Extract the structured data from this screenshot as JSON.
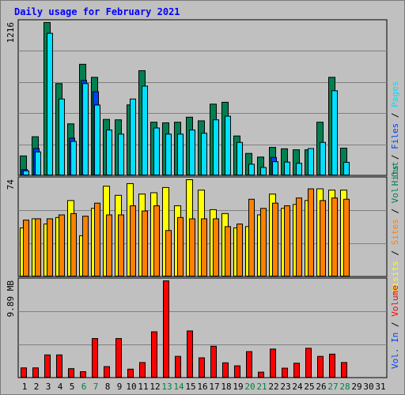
{
  "title": "Daily usage for February 2021",
  "colors": {
    "hits": "#008050",
    "files": "#0040ff",
    "pages": "#00e0ff",
    "visits": "#ffff00",
    "sites": "#ff8000",
    "volume": "#ff0000",
    "grid": "#808080",
    "plot_bg": "#c0c0c0",
    "weekday_label": "#000000",
    "weekend_label": "#008040"
  },
  "right_labels": {
    "top": [
      {
        "text": "Hits",
        "color": "#008050"
      },
      {
        "text": "Files",
        "color": "#0040ff"
      },
      {
        "text": "Pages",
        "color": "#00e0ff"
      }
    ],
    "middle": [
      {
        "text": "Visits",
        "color": "#ffff00"
      },
      {
        "text": "Sites",
        "color": "#ff8000"
      },
      {
        "text": "Vol. Out",
        "color": "#008050"
      }
    ],
    "bottom": [
      {
        "text": "Vol. In",
        "color": "#0040ff"
      },
      {
        "text": "Volume",
        "color": "#ff0000"
      }
    ],
    "separator": " / "
  },
  "chart_data": [
    {
      "type": "bar",
      "panel": "hits-files-pages",
      "ymax_label": "1216",
      "ylim": [
        0,
        1216
      ],
      "categories": [
        "1",
        "2",
        "3",
        "4",
        "5",
        "6",
        "7",
        "8",
        "9",
        "10",
        "11",
        "12",
        "13",
        "14",
        "15",
        "16",
        "17",
        "18",
        "19",
        "20",
        "21",
        "22",
        "23",
        "24",
        "25",
        "26",
        "27",
        "28",
        "29",
        "30",
        "31"
      ],
      "weekend_days": [
        "6",
        "7",
        "13",
        "14",
        "20",
        "21",
        "27",
        "28"
      ],
      "series": [
        {
          "name": "Hits",
          "values": [
            152,
            305,
            1216,
            729,
            408,
            883,
            779,
            443,
            440,
            559,
            832,
            421,
            416,
            421,
            461,
            432,
            565,
            580,
            311,
            172,
            143,
            220,
            209,
            201,
            201,
            421,
            779,
            214,
            0,
            0,
            0
          ]
        },
        {
          "name": "Files",
          "values": [
            43,
            211,
            0,
            0,
            293,
            754,
            664,
            0,
            0,
            0,
            0,
            0,
            0,
            0,
            0,
            0,
            0,
            0,
            0,
            0,
            0,
            140,
            0,
            0,
            0,
            0,
            0,
            0,
            0,
            0,
            0
          ]
        },
        {
          "name": "Pages",
          "values": [
            33,
            184,
            1130,
            606,
            268,
            729,
            558,
            359,
            326,
            606,
            709,
            375,
            326,
            326,
            359,
            333,
            440,
            469,
            260,
            86,
            60,
            106,
            103,
            93,
            211,
            260,
            672,
            101,
            0,
            0,
            0
          ]
        }
      ]
    },
    {
      "type": "bar",
      "panel": "visits-sites",
      "ymax_label": "74",
      "ylim": [
        0,
        74
      ],
      "categories": [
        "1",
        "2",
        "3",
        "4",
        "5",
        "6",
        "7",
        "8",
        "9",
        "10",
        "11",
        "12",
        "13",
        "14",
        "15",
        "16",
        "17",
        "18",
        "19",
        "20",
        "21",
        "22",
        "23",
        "24",
        "25",
        "26",
        "27",
        "28",
        "29",
        "30",
        "31"
      ],
      "series": [
        {
          "name": "Visits",
          "values": [
            37,
            44,
            40,
            45,
            58,
            31,
            52,
            69,
            62,
            71,
            63,
            64,
            68,
            54,
            74,
            66,
            51,
            48,
            37,
            38,
            47,
            63,
            52,
            55,
            58,
            67,
            66,
            66,
            0,
            0,
            0
          ]
        },
        {
          "name": "Sites",
          "values": [
            43,
            44,
            44,
            47,
            48,
            46,
            56,
            47,
            47,
            54,
            50,
            54,
            35,
            45,
            44,
            44,
            44,
            38,
            40,
            59,
            52,
            56,
            54,
            60,
            67,
            58,
            60,
            59,
            0,
            0,
            0
          ]
        }
      ]
    },
    {
      "type": "bar",
      "panel": "volume",
      "ymax_label": "9.89 MB",
      "ylim": [
        0,
        9.89
      ],
      "unit": "MB",
      "categories": [
        "1",
        "2",
        "3",
        "4",
        "5",
        "6",
        "7",
        "8",
        "9",
        "10",
        "11",
        "12",
        "13",
        "14",
        "15",
        "16",
        "17",
        "18",
        "19",
        "20",
        "21",
        "22",
        "23",
        "24",
        "25",
        "26",
        "27",
        "28",
        "29",
        "30",
        "31"
      ],
      "series": [
        {
          "name": "Volume",
          "values": [
            0.96,
            0.96,
            2.29,
            2.29,
            0.88,
            0.57,
            3.97,
            1.09,
            3.97,
            0.83,
            1.51,
            4.66,
            9.89,
            2.14,
            4.75,
            1.99,
            3.18,
            1.48,
            1.17,
            2.63,
            0.52,
            2.89,
            0.93,
            1.44,
            2.97,
            2.14,
            2.37,
            1.51,
            0,
            0,
            0
          ]
        }
      ]
    }
  ]
}
